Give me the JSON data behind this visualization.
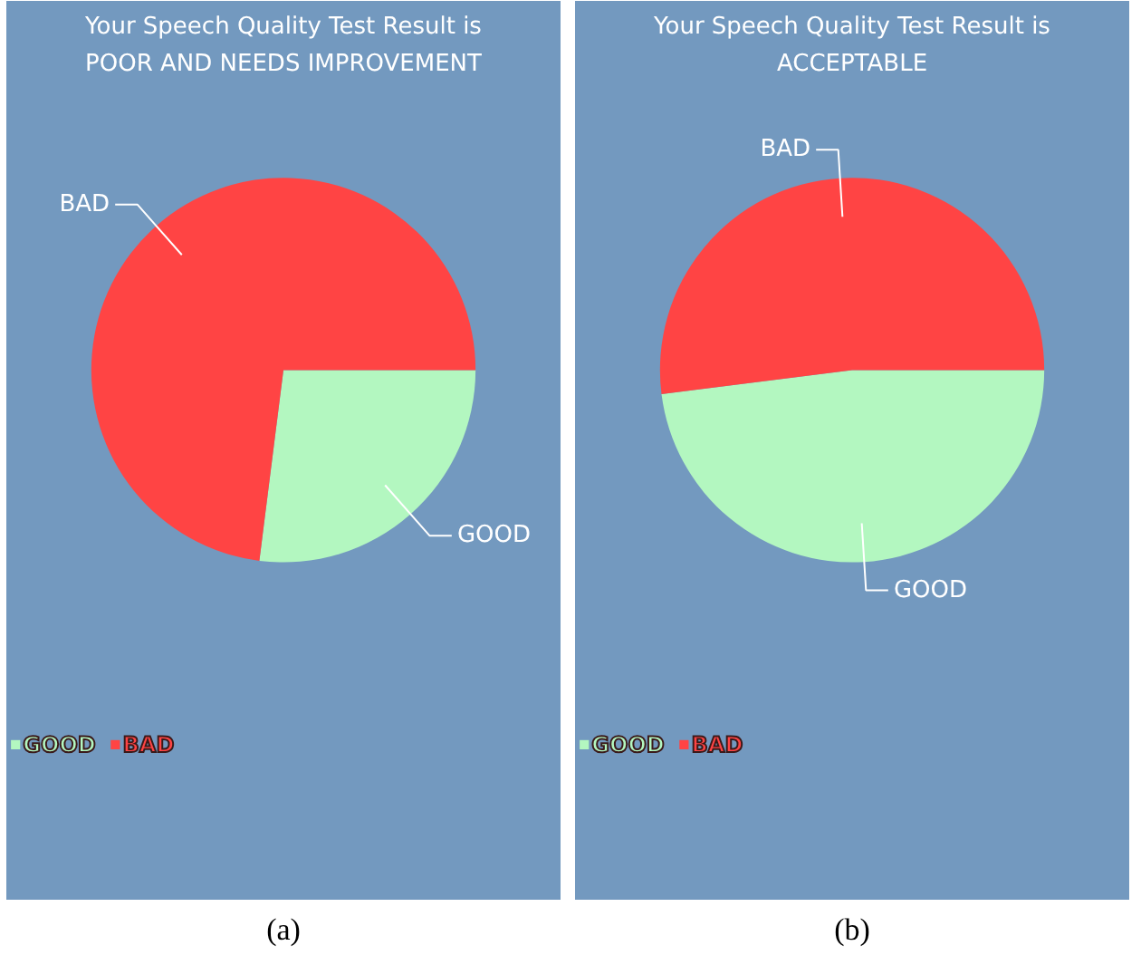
{
  "chart_data": [
    {
      "type": "pie",
      "title": "Your Speech Quality Test Result is\nPOOR AND NEEDS IMPROVEMENT",
      "categories": [
        "GOOD",
        "BAD"
      ],
      "values": [
        27,
        73
      ],
      "colors": [
        "#b3f7c0",
        "#ff4444"
      ],
      "legend": "bottom left",
      "annotations": [
        "(a)"
      ]
    },
    {
      "type": "pie",
      "title": "Your Speech Quality Test Result is\nACCEPTABLE",
      "categories": [
        "GOOD",
        "BAD"
      ],
      "values": [
        48,
        52
      ],
      "colors": [
        "#b3f7c0",
        "#ff4444"
      ],
      "legend": "bottom left",
      "annotations": [
        "(b)"
      ]
    }
  ]
}
